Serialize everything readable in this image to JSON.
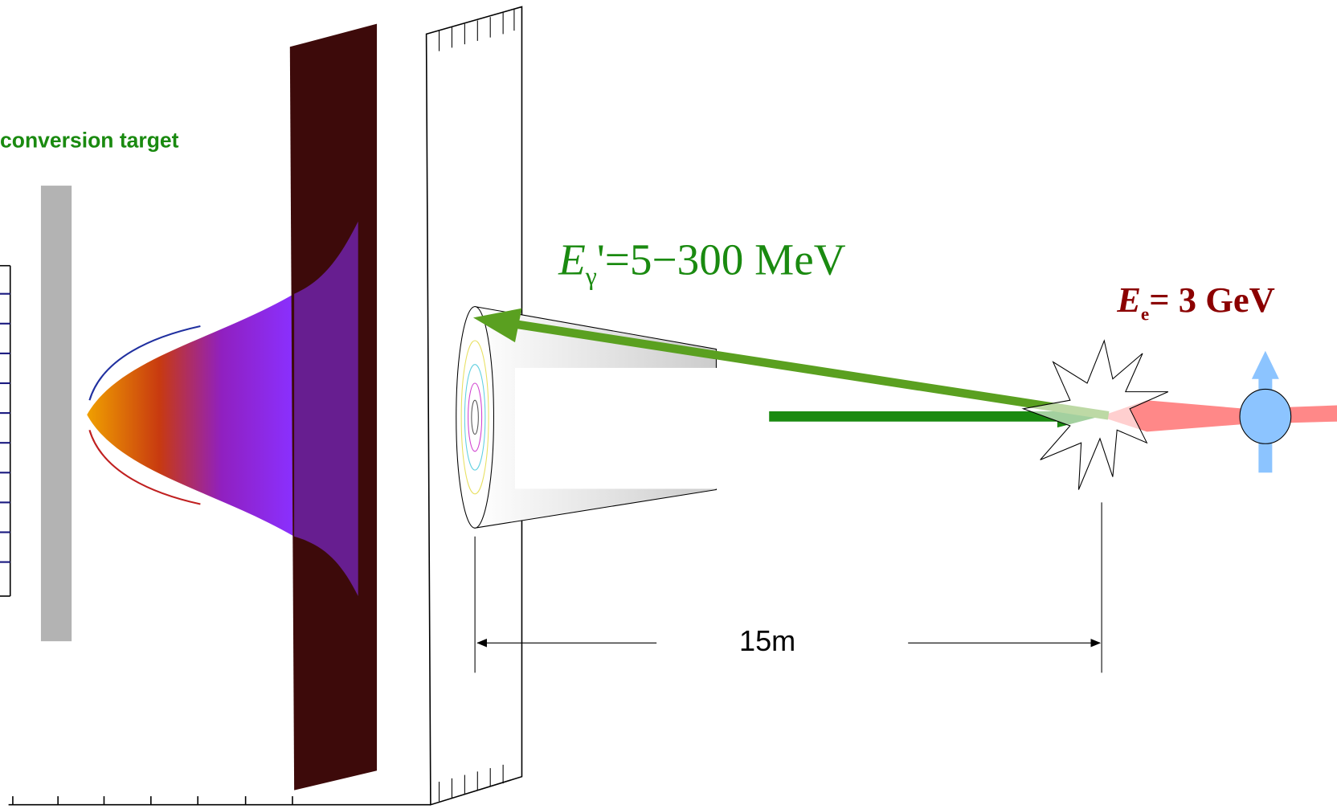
{
  "labels": {
    "target": "conversion target",
    "photon_energy": {
      "symbol": "E",
      "subscript": "γ",
      "rest": "'=5−300 MeV"
    },
    "electron_energy": {
      "symbol": "E",
      "subscript": "e",
      "rest": "= 3 GeV"
    },
    "distance": "15m"
  }
}
